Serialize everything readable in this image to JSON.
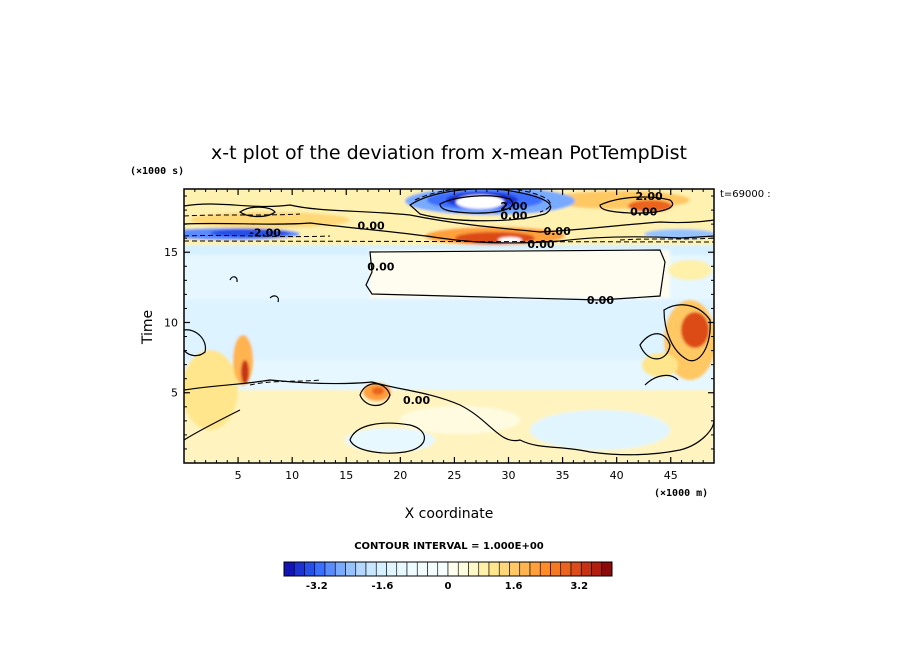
{
  "chart_data": {
    "type": "heatmap",
    "title": "x-t plot of the deviation from x-mean PotTempDist",
    "xlabel": "X coordinate",
    "ylabel": "Time",
    "x_unit": "(×1000 m)",
    "y_unit": "(×1000 s)",
    "time_annotation": "t=69000 :",
    "contour_interval_text": "CONTOUR INTERVAL = 1.000E+00",
    "xlim": [
      0,
      49
    ],
    "ylim": [
      0,
      19.5
    ],
    "x_ticks": [
      5,
      10,
      15,
      20,
      25,
      30,
      35,
      40,
      45
    ],
    "y_ticks": [
      5,
      10,
      15
    ],
    "contour_labels": [
      {
        "text": "2.00",
        "x": 30.5,
        "y": 18.3
      },
      {
        "text": "0.00",
        "x": 30.5,
        "y": 17.6
      },
      {
        "text": "0.00",
        "x": 17.3,
        "y": 16.9
      },
      {
        "text": "-2.00",
        "x": 7.5,
        "y": 16.4
      },
      {
        "text": "0.00",
        "x": 34.5,
        "y": 16.5
      },
      {
        "text": "0.00",
        "x": 33.0,
        "y": 15.6
      },
      {
        "text": "0.00",
        "x": 18.2,
        "y": 14.0
      },
      {
        "text": "0.00",
        "x": 38.5,
        "y": 11.6
      },
      {
        "text": "0.00",
        "x": 21.5,
        "y": 4.5
      },
      {
        "text": "2.00",
        "x": 43.0,
        "y": 19.0
      },
      {
        "text": "0.00",
        "x": 42.5,
        "y": 17.9
      }
    ],
    "colorbar": {
      "min": -4.0,
      "max": 4.0,
      "levels": 32,
      "tick_labels": [
        "-3.2",
        "-1.6",
        "0",
        "1.6",
        "3.2"
      ],
      "tick_values": [
        -3.2,
        -1.6,
        0,
        1.6,
        3.2
      ],
      "colors": [
        "#1414b4",
        "#1e32d2",
        "#2850e6",
        "#3c6eff",
        "#5a8cff",
        "#78aaff",
        "#96c3ff",
        "#b4d7ff",
        "#c8e6ff",
        "#d7f0ff",
        "#e1f5ff",
        "#e8f8ff",
        "#eefbff",
        "#f2fdff",
        "#f5feff",
        "#f8ffff",
        "#fffff0",
        "#fffde0",
        "#fff8c8",
        "#fff0aa",
        "#ffe68c",
        "#ffd778",
        "#ffc864",
        "#ffb450",
        "#ffa03c",
        "#ff8c28",
        "#f57823",
        "#eb641e",
        "#dc4b19",
        "#c83214",
        "#b41e0f",
        "#8c0a0a"
      ]
    },
    "field_description_levels": {
      "background_value": 0.3,
      "colors_note": "diverging blue-white-red"
    }
  }
}
